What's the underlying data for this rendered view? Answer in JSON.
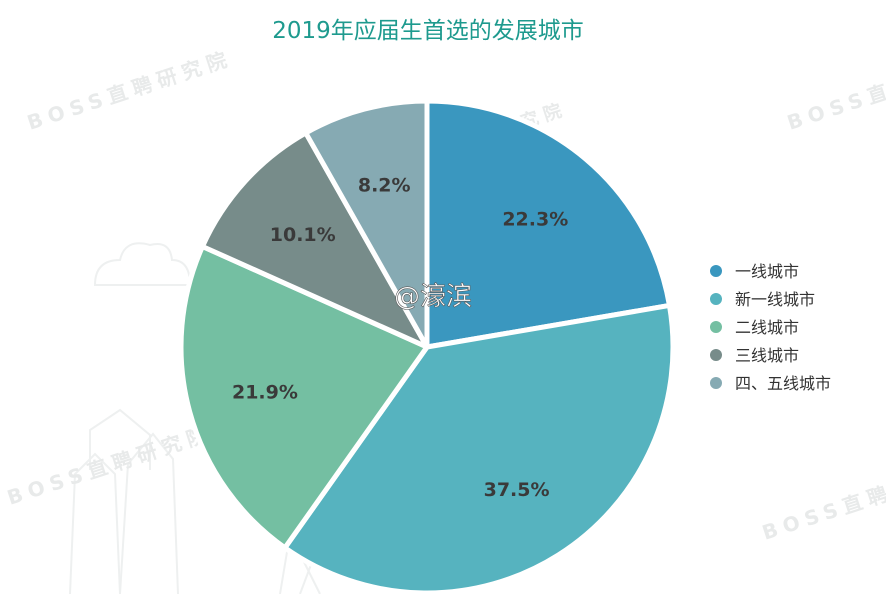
{
  "chart_data": {
    "type": "pie",
    "title": "2019年应届生首选的发展城市",
    "start_angle_deg": 90,
    "direction": "clockwise",
    "slices": [
      {
        "label": "一线城市",
        "value": 22.3,
        "value_label": "22.3%",
        "color": "#3a97bf"
      },
      {
        "label": "新一线城市",
        "value": 37.5,
        "value_label": "37.5%",
        "color": "#56b3bf"
      },
      {
        "label": "二线城市",
        "value": 21.9,
        "value_label": "21.9%",
        "color": "#74bfa2"
      },
      {
        "label": "三线城市",
        "value": 10.1,
        "value_label": "10.1%",
        "color": "#778c8a"
      },
      {
        "label": "四、五线城市",
        "value": 8.2,
        "value_label": "8.2%",
        "color": "#86aab3"
      }
    ],
    "legend_position": "right",
    "label_color": "#3a3a3a",
    "title_color": "#1e9a8e"
  },
  "watermark": {
    "text": "BOSS直聘研究院",
    "handle": "@濠滨"
  }
}
